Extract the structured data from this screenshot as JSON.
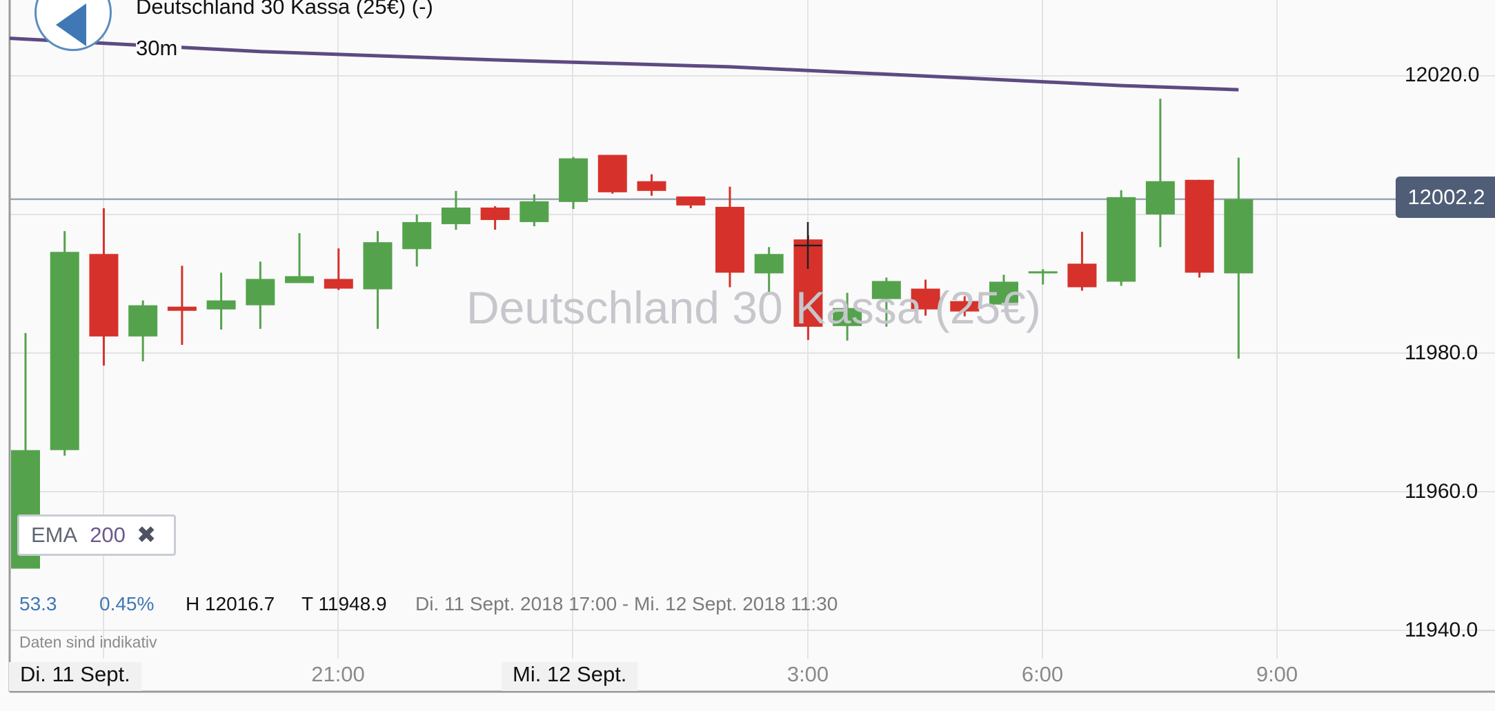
{
  "back_button": {
    "icon": "back-arrow-icon",
    "color": "#3f78b5"
  },
  "instrument": {
    "title": "Deutschland 30 Kassa (25€) (-)",
    "interval": "30m",
    "watermark": "Deutschland 30 Kassa (25€)"
  },
  "price_axis": {
    "ticks": [
      "12020.0",
      "11980.0",
      "11960.0",
      "11940.0"
    ],
    "current_price": "12002.2"
  },
  "indicator": {
    "name": "EMA",
    "period": "200",
    "remove_icon": "close-icon"
  },
  "stats": {
    "change": "53.3",
    "change_pct": "0.45%",
    "high": "H 12016.7",
    "low": "T 11948.9",
    "range": "Di. 11 Sept. 2018 17:00 - Mi. 12 Sept. 2018 11:30"
  },
  "disclaimer": "Daten sind indikativ",
  "time_axis": {
    "day_labels": [
      "Di. 11 Sept.",
      "Mi. 12 Sept."
    ],
    "time_labels": [
      "21:00",
      "3:00",
      "6:00",
      "9:00"
    ]
  },
  "colors": {
    "up": "#54a34c",
    "down": "#d6322b",
    "ema": "#5e4a82",
    "grid": "#e3e3e3",
    "price_line": "#9aa4b2",
    "price_tag": "#4f5d76",
    "stat_blue": "#3f78b5"
  },
  "chart_data": {
    "type": "candlestick",
    "interval": "30m",
    "y_axis_ticks": [
      11940,
      11960,
      11980,
      12000,
      12020
    ],
    "ylim": [
      11934,
      12031
    ],
    "current_price": 12002.2,
    "time_ticks": [
      "Di. 11 Sept.",
      "21:00",
      "Mi. 12 Sept.",
      "3:00",
      "6:00",
      "9:00"
    ],
    "candles": [
      {
        "t": "17:00",
        "o": 11948.9,
        "h": 11982.9,
        "l": 11948.9,
        "c": 11966.0
      },
      {
        "t": "17:30",
        "o": 11966.0,
        "h": 11997.6,
        "l": 11965.2,
        "c": 11994.6
      },
      {
        "t": "18:00",
        "o": 11994.3,
        "h": 12000.9,
        "l": 11978.2,
        "c": 11982.4
      },
      {
        "t": "18:30",
        "o": 11982.4,
        "h": 11987.6,
        "l": 11978.8,
        "c": 11986.9
      },
      {
        "t": "19:00",
        "o": 11986.7,
        "h": 11992.6,
        "l": 11981.2,
        "c": 11986.1
      },
      {
        "t": "19:30",
        "o": 11986.3,
        "h": 11991.6,
        "l": 11983.4,
        "c": 11987.6
      },
      {
        "t": "20:00",
        "o": 11986.9,
        "h": 11993.2,
        "l": 11983.5,
        "c": 11990.7
      },
      {
        "t": "20:30",
        "o": 11990.1,
        "h": 11997.3,
        "l": 11990.1,
        "c": 11991.1
      },
      {
        "t": "21:00",
        "o": 11990.7,
        "h": 11995.1,
        "l": 11989.1,
        "c": 11989.3
      },
      {
        "t": "21:30",
        "o": 11989.2,
        "h": 11997.6,
        "l": 11983.5,
        "c": 11996.0
      },
      {
        "t": "22:00",
        "o": 11995.0,
        "h": 12000.0,
        "l": 11992.5,
        "c": 11998.9
      },
      {
        "t": "22:30",
        "o": 11998.6,
        "h": 12003.4,
        "l": 11997.8,
        "c": 12001.0
      },
      {
        "t": "23:00",
        "o": 12001.0,
        "h": 12001.2,
        "l": 11997.8,
        "c": 11999.2
      },
      {
        "t": "23:30",
        "o": 11998.9,
        "h": 12002.9,
        "l": 11998.3,
        "c": 12001.9
      },
      {
        "t": "00:00",
        "o": 12001.8,
        "h": 12008.3,
        "l": 12000.8,
        "c": 12008.1
      },
      {
        "t": "00:30",
        "o": 12008.6,
        "h": 12008.6,
        "l": 12003.0,
        "c": 12003.2
      },
      {
        "t": "01:00",
        "o": 12004.8,
        "h": 12005.8,
        "l": 12002.7,
        "c": 12003.4
      },
      {
        "t": "01:30",
        "o": 12002.6,
        "h": 12002.6,
        "l": 12000.9,
        "c": 12001.3
      },
      {
        "t": "02:00",
        "o": 12001.1,
        "h": 12004.0,
        "l": 11989.5,
        "c": 11991.6
      },
      {
        "t": "02:30",
        "o": 11991.5,
        "h": 11995.3,
        "l": 11988.4,
        "c": 11994.3
      },
      {
        "t": "03:00",
        "o": 11996.4,
        "h": 11997.0,
        "l": 11981.9,
        "c": 11983.8
      },
      {
        "t": "03:30",
        "o": 11983.9,
        "h": 11988.7,
        "l": 11981.8,
        "c": 11986.5
      },
      {
        "t": "04:00",
        "o": 11987.8,
        "h": 11990.9,
        "l": 11983.8,
        "c": 11990.4
      },
      {
        "t": "04:30",
        "o": 11989.3,
        "h": 11990.6,
        "l": 11985.4,
        "c": 11986.3
      },
      {
        "t": "05:00",
        "o": 11987.5,
        "h": 11988.2,
        "l": 11985.3,
        "c": 11986.0
      },
      {
        "t": "05:30",
        "o": 11987.0,
        "h": 11991.3,
        "l": 11987.0,
        "c": 11990.3
      },
      {
        "t": "06:00",
        "o": 11991.6,
        "h": 11992.1,
        "l": 11989.9,
        "c": 11991.8
      },
      {
        "t": "06:30",
        "o": 11992.9,
        "h": 11997.5,
        "l": 11989.0,
        "c": 11989.5
      },
      {
        "t": "07:00",
        "o": 11990.3,
        "h": 12003.5,
        "l": 11989.7,
        "c": 12002.5
      },
      {
        "t": "07:30",
        "o": 12000.0,
        "h": 12016.7,
        "l": 11995.3,
        "c": 12004.8
      },
      {
        "t": "08:00",
        "o": 12005.0,
        "h": 12005.0,
        "l": 11990.9,
        "c": 11991.6
      },
      {
        "t": "08:30",
        "o": 11991.5,
        "h": 12008.2,
        "l": 11979.2,
        "c": 12002.2
      }
    ],
    "ema": {
      "name": "EMA 200",
      "points": [
        {
          "t": "17:00",
          "v": 12025.3
        },
        {
          "t": "20:00",
          "v": 12023.5
        },
        {
          "t": "23:00",
          "v": 12022.3
        },
        {
          "t": "02:00",
          "v": 12021.3
        },
        {
          "t": "05:00",
          "v": 12019.7
        },
        {
          "t": "07:00",
          "v": 12018.6
        },
        {
          "t": "08:30",
          "v": 12018.0
        }
      ]
    }
  }
}
